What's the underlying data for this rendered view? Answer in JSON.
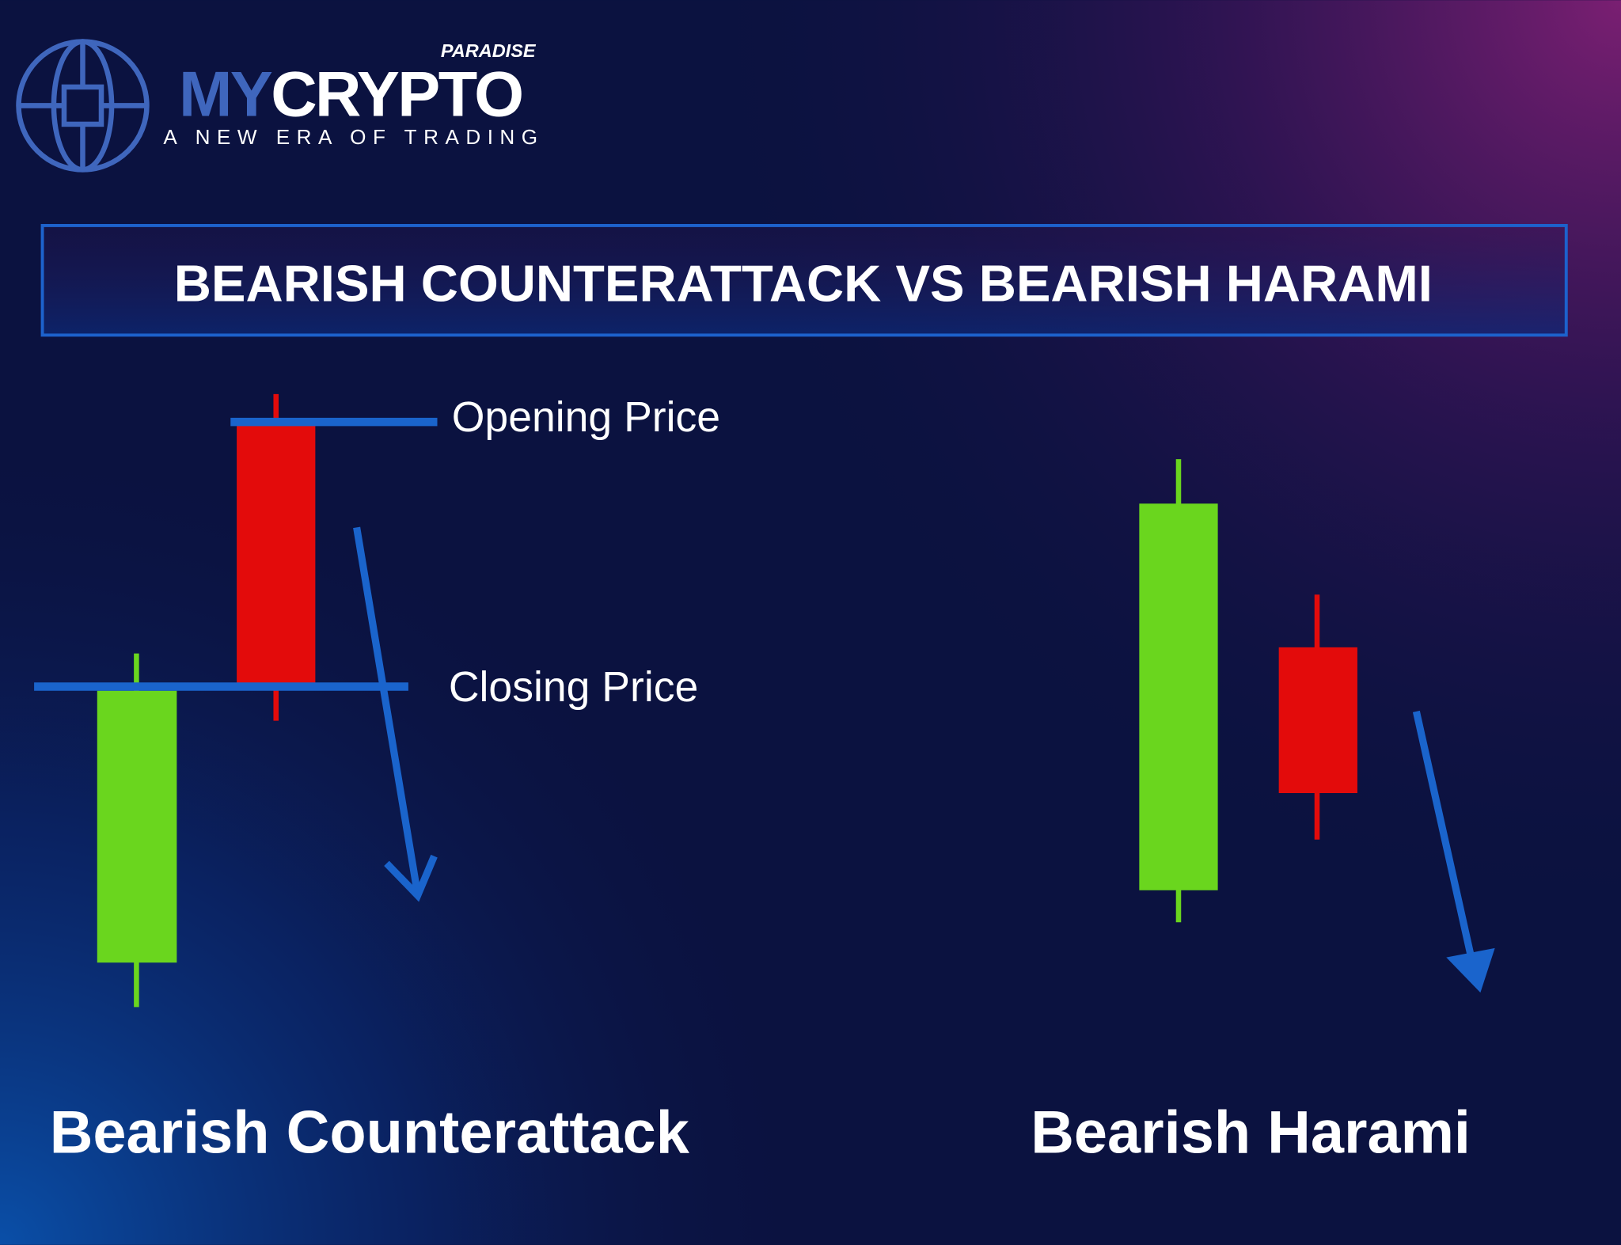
{
  "logo": {
    "tag": "PARADISE",
    "brand_prefix": "MY",
    "brand_main": "CRYPTO",
    "tagline": "A NEW ERA OF TRADING"
  },
  "title": "BEARISH COUNTERATTACK VS BEARISH HARAMI",
  "left_panel": {
    "opening_label": "Opening Price",
    "closing_label": "Closing Price",
    "caption": "Bearish Counterattack"
  },
  "right_panel": {
    "caption": "Bearish Harami"
  }
}
